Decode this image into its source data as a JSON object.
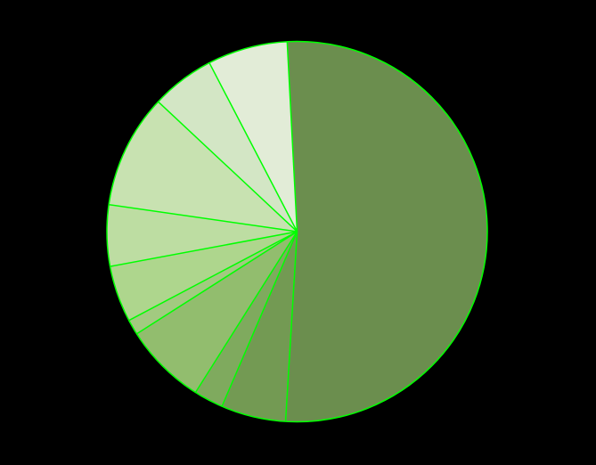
{
  "chart_data": {
    "type": "pie",
    "title": "",
    "start_angle_deg": -3,
    "direction": "clockwise",
    "stroke_color": "#00FF00",
    "background_color": "#000000",
    "slices": [
      {
        "value": 51.8,
        "color": "#6B8E4E"
      },
      {
        "value": 5.5,
        "color": "#739A53"
      },
      {
        "value": 2.5,
        "color": "#7FAA5E"
      },
      {
        "value": 7.0,
        "color": "#92BD6E"
      },
      {
        "value": 1.3,
        "color": "#A2CA80"
      },
      {
        "value": 4.8,
        "color": "#AED68D"
      },
      {
        "value": 5.2,
        "color": "#BDDDA2"
      },
      {
        "value": 9.7,
        "color": "#C8E2B1"
      },
      {
        "value": 5.4,
        "color": "#D3E6C5"
      },
      {
        "value": 6.8,
        "color": "#E2ECD7"
      }
    ]
  }
}
